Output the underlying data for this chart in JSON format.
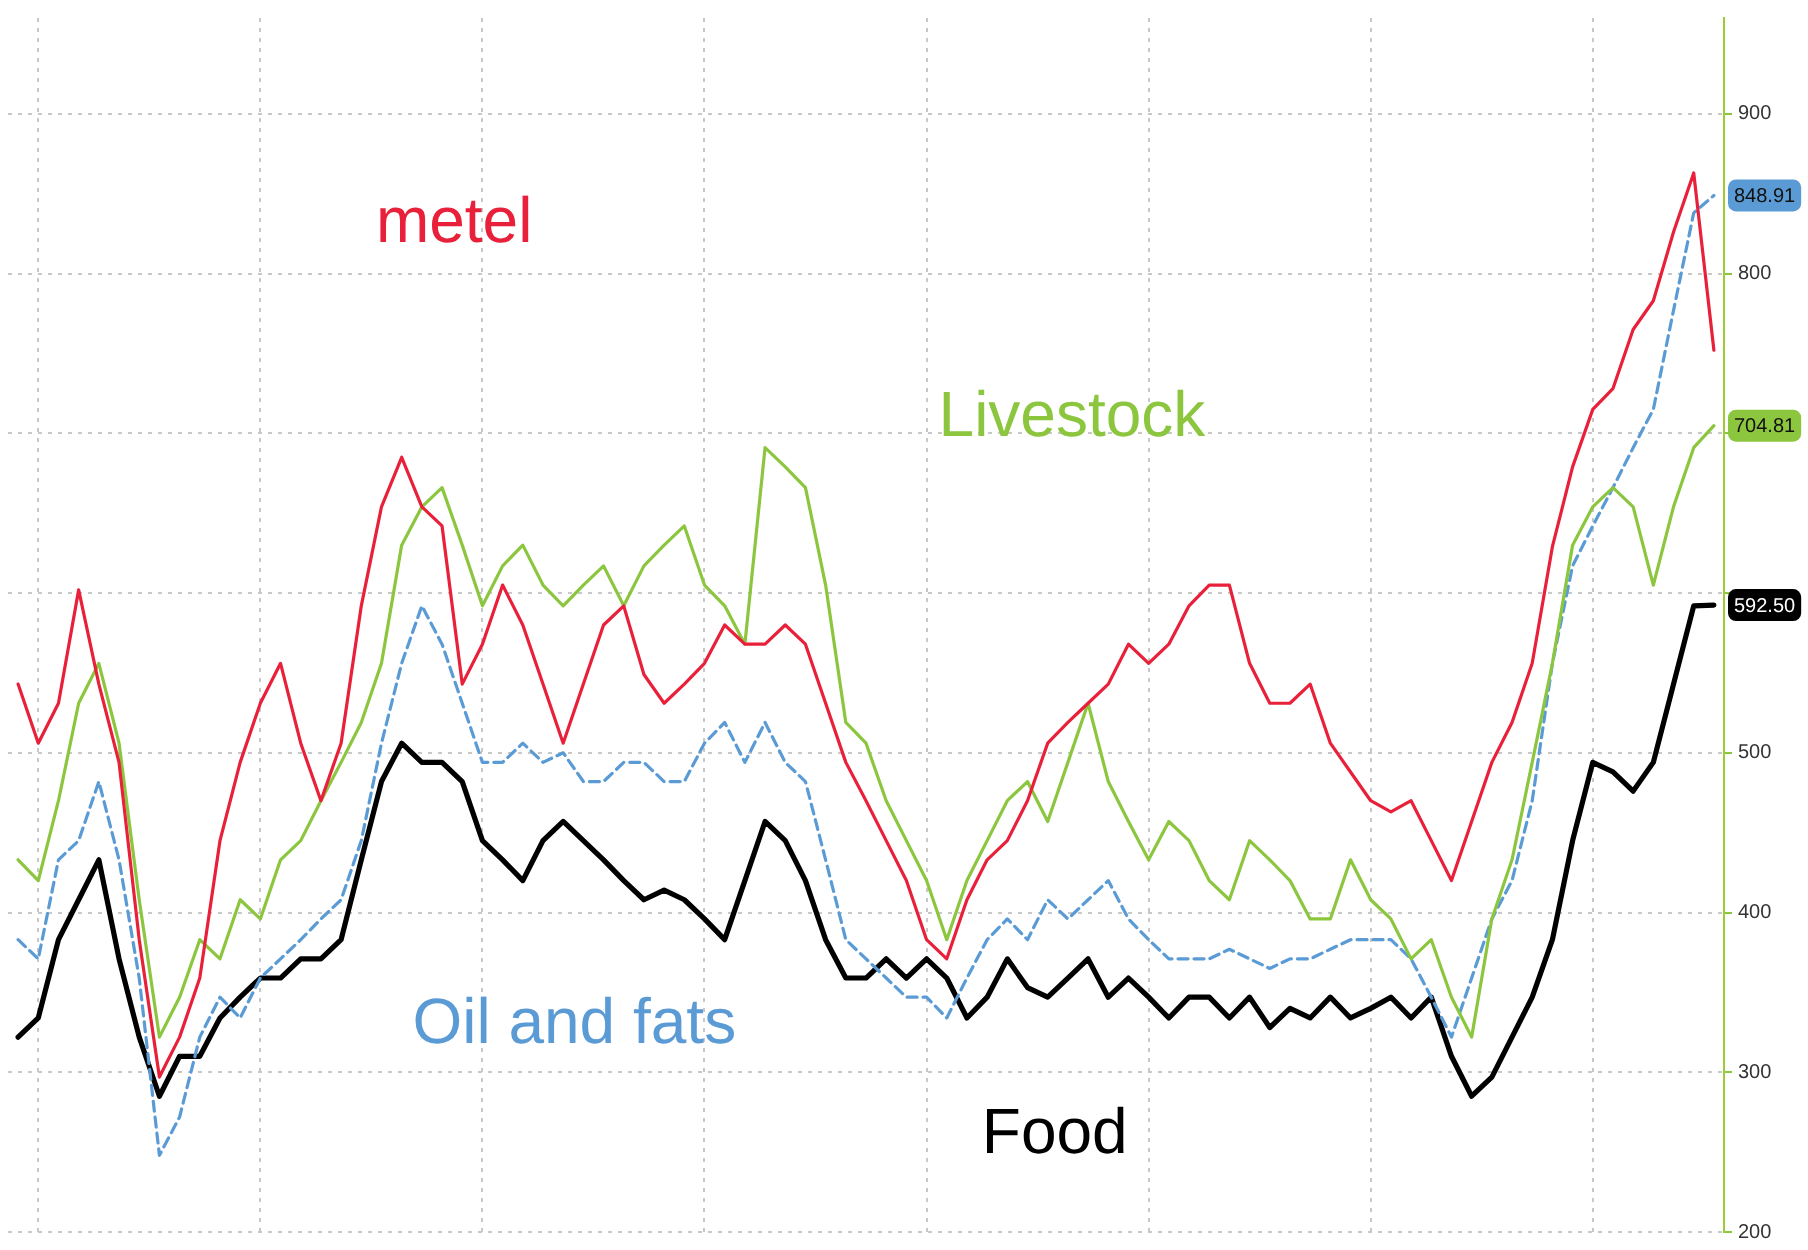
{
  "chart_data": {
    "type": "line",
    "categories": [
      null,
      null,
      null,
      null,
      null,
      null,
      null,
      null,
      null,
      null,
      null,
      null,
      null,
      null,
      null,
      null,
      null,
      null,
      null,
      null,
      null,
      null,
      null,
      null,
      null,
      null,
      null,
      null,
      null,
      null,
      null,
      null,
      null,
      null,
      null,
      null,
      null,
      null,
      null,
      null,
      null,
      null,
      null,
      null,
      null,
      null,
      null,
      null,
      null,
      null,
      null,
      null,
      null,
      null,
      null,
      null,
      null,
      null,
      null,
      null,
      null,
      null,
      null,
      null,
      null,
      null,
      null,
      null,
      null,
      null,
      null,
      null,
      null,
      null,
      null,
      null,
      null,
      null,
      null,
      null,
      null,
      null,
      null,
      null,
      null
    ],
    "ylim": [
      200,
      960
    ],
    "yticks": [
      200,
      300,
      400,
      500,
      {
        "value": 600,
        "label": null
      },
      {
        "value": 700,
        "label": null
      },
      800,
      900
    ],
    "tick_labels": "y",
    "grid": true,
    "legend": false,
    "marker": "none",
    "line_style": "solid",
    "series": [
      {
        "name": "metel",
        "color": "#e8203a",
        "values": [
          543,
          506,
          531,
          602,
          543,
          494,
          383,
          297,
          322,
          359,
          445,
          494,
          531,
          556,
          506,
          470,
          506,
          592,
          654,
          685,
          654,
          642,
          543,
          568,
          605,
          580,
          543,
          506,
          543,
          580,
          592,
          549,
          531,
          543,
          556,
          580,
          568,
          568,
          580,
          568,
          531,
          494,
          470,
          445,
          420,
          383,
          371,
          408,
          433,
          445,
          470,
          506,
          519,
          531,
          543,
          568,
          556,
          568,
          592,
          605,
          605,
          556,
          531,
          531,
          543,
          506,
          488,
          470,
          463,
          470,
          445,
          420,
          457,
          494,
          519,
          556,
          629,
          679,
          715,
          728,
          765,
          783,
          826,
          863,
          752
        ]
      },
      {
        "name": "Livestock",
        "color": "#8cc63e",
        "values": [
          433,
          420,
          470,
          531,
          556,
          506,
          408,
          322,
          347,
          383,
          371,
          408,
          396,
          433,
          445,
          470,
          494,
          519,
          556,
          630,
          654,
          666,
          630,
          592,
          617,
          630,
          605,
          592,
          605,
          617,
          592,
          617,
          630,
          642,
          605,
          592,
          568,
          691,
          679,
          666,
          605,
          519,
          506,
          470,
          445,
          420,
          383,
          420,
          445,
          470,
          482,
          457,
          494,
          531,
          482,
          457,
          433,
          457,
          445,
          420,
          408,
          445,
          433,
          420,
          396,
          396,
          433,
          408,
          396,
          371,
          383,
          347,
          322,
          396,
          433,
          494,
          556,
          630,
          654,
          666,
          654,
          605,
          654,
          691,
          704.81
        ],
        "value_labels": [
          null,
          null,
          null,
          null,
          null,
          null,
          null,
          null,
          null,
          null,
          null,
          null,
          null,
          null,
          null,
          null,
          null,
          null,
          null,
          null,
          null,
          null,
          null,
          null,
          null,
          null,
          null,
          null,
          null,
          null,
          null,
          null,
          null,
          null,
          null,
          null,
          null,
          null,
          null,
          null,
          null,
          null,
          null,
          null,
          null,
          null,
          null,
          null,
          null,
          null,
          null,
          null,
          null,
          null,
          null,
          null,
          null,
          null,
          null,
          null,
          null,
          null,
          null,
          null,
          null,
          null,
          null,
          null,
          null,
          null,
          null,
          null,
          null,
          null,
          null,
          null,
          null,
          null,
          null,
          null,
          null,
          null,
          null,
          null,
          "704.81"
        ]
      },
      {
        "name": "Oil and fats",
        "color": "#5b9bd5",
        "line_style": "dashed",
        "values": [
          383,
          371,
          433,
          445,
          482,
          433,
          359,
          248,
          272,
          322,
          347,
          334,
          359,
          371,
          383,
          396,
          408,
          445,
          506,
          556,
          592,
          568,
          531,
          494,
          494,
          506,
          494,
          500,
          482,
          482,
          494,
          494,
          482,
          482,
          506,
          519,
          494,
          519,
          494,
          482,
          433,
          383,
          371,
          359,
          347,
          347,
          334,
          359,
          383,
          396,
          383,
          408,
          396,
          408,
          420,
          396,
          383,
          371,
          371,
          371,
          377,
          371,
          365,
          371,
          371,
          377,
          383,
          383,
          383,
          371,
          347,
          322,
          359,
          396,
          420,
          470,
          556,
          617,
          642,
          666,
          691,
          715,
          777,
          838,
          848.91
        ],
        "value_labels": [
          null,
          null,
          null,
          null,
          null,
          null,
          null,
          null,
          null,
          null,
          null,
          null,
          null,
          null,
          null,
          null,
          null,
          null,
          null,
          null,
          null,
          null,
          null,
          null,
          null,
          null,
          null,
          null,
          null,
          null,
          null,
          null,
          null,
          null,
          null,
          null,
          null,
          null,
          null,
          null,
          null,
          null,
          null,
          null,
          null,
          null,
          null,
          null,
          null,
          null,
          null,
          null,
          null,
          null,
          null,
          null,
          null,
          null,
          null,
          null,
          null,
          null,
          null,
          null,
          null,
          null,
          null,
          null,
          null,
          null,
          null,
          null,
          null,
          null,
          null,
          null,
          null,
          null,
          null,
          null,
          null,
          null,
          null,
          null,
          "848.91"
        ]
      },
      {
        "name": "Food",
        "color": "#000000",
        "values": [
          322,
          334,
          383,
          408,
          433,
          371,
          322,
          285,
          310,
          310,
          334,
          347,
          359,
          359,
          371,
          371,
          383,
          433,
          482,
          506,
          494,
          494,
          482,
          445,
          433,
          420,
          445,
          457,
          445,
          433,
          420,
          408,
          414,
          408,
          396,
          383,
          420,
          457,
          445,
          420,
          383,
          359,
          359,
          371,
          359,
          371,
          359,
          334,
          347,
          371,
          353,
          347,
          359,
          371,
          347,
          359,
          347,
          334,
          347,
          347,
          334,
          347,
          328,
          340,
          334,
          347,
          334,
          340,
          347,
          334,
          347,
          310,
          285,
          297,
          322,
          347,
          383,
          445,
          494,
          488,
          476,
          494,
          543,
          592,
          592.5
        ],
        "value_labels": [
          null,
          null,
          null,
          null,
          null,
          null,
          null,
          null,
          null,
          null,
          null,
          null,
          null,
          null,
          null,
          null,
          null,
          null,
          null,
          null,
          null,
          null,
          null,
          null,
          null,
          null,
          null,
          null,
          null,
          null,
          null,
          null,
          null,
          null,
          null,
          null,
          null,
          null,
          null,
          null,
          null,
          null,
          null,
          null,
          null,
          null,
          null,
          null,
          null,
          null,
          null,
          null,
          null,
          null,
          null,
          null,
          null,
          null,
          null,
          null,
          null,
          null,
          null,
          null,
          null,
          null,
          null,
          null,
          null,
          null,
          null,
          null,
          null,
          null,
          null,
          null,
          null,
          null,
          null,
          null,
          null,
          null,
          null,
          null,
          "592.50"
        ]
      }
    ]
  }
}
